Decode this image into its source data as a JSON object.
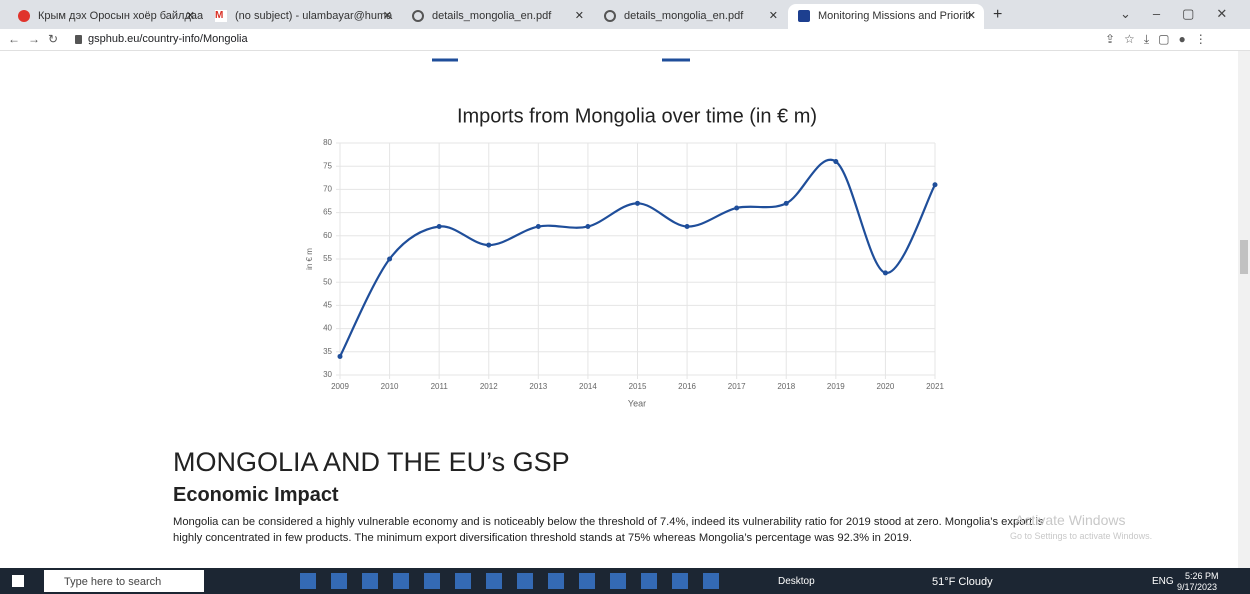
{
  "browser": {
    "tabs": [
      "Крым дэх Оросын хоёр байлдаа",
      "(no subject) - ulambayar@huma",
      "details_mongolia_en.pdf",
      "details_mongolia_en.pdf",
      "Monitoring Missions and Prioriti"
    ],
    "url": "gsphub.eu/country-info/Mongolia"
  },
  "chart_data": {
    "type": "line",
    "title": "Imports from Mongolia over time (in € m)",
    "x_label": "Year",
    "y_label": "in € m",
    "categories": [
      "2009",
      "2010",
      "2011",
      "2012",
      "2013",
      "2014",
      "2015",
      "2016",
      "2017",
      "2018",
      "2019",
      "2020",
      "2021"
    ],
    "values": [
      34,
      55,
      62,
      58,
      62,
      62,
      67,
      62,
      66,
      67,
      76,
      52,
      71
    ],
    "color": "#1f4e9a",
    "ylim": [
      30,
      80
    ],
    "yticks": [
      30,
      35,
      40,
      45,
      50,
      55,
      60,
      65,
      70,
      75,
      80
    ],
    "grid": true
  },
  "article": {
    "heading": "MONGOLIA AND THE EU’s GSP",
    "subheading": "Economic Impact",
    "paragraph": "Mongolia can be considered a highly vulnerable economy and is noticeably below the threshold of 7.4%, indeed its vulnerability ratio for 2019 stood at zero. Mongolia’s export is highly concentrated in few products. The minimum export diversification threshold stands at 75% whereas Mongolia’s percentage was 92.3% in 2019."
  },
  "watermark": {
    "title": "Activate Windows",
    "subtitle": "Go to Settings to activate Windows."
  },
  "taskbar": {
    "search": "Type here to search",
    "desktop": "Desktop",
    "weather": "51°F Cloudy",
    "language": "ENG",
    "time": "5:26 PM",
    "date": "9/17/2023"
  }
}
